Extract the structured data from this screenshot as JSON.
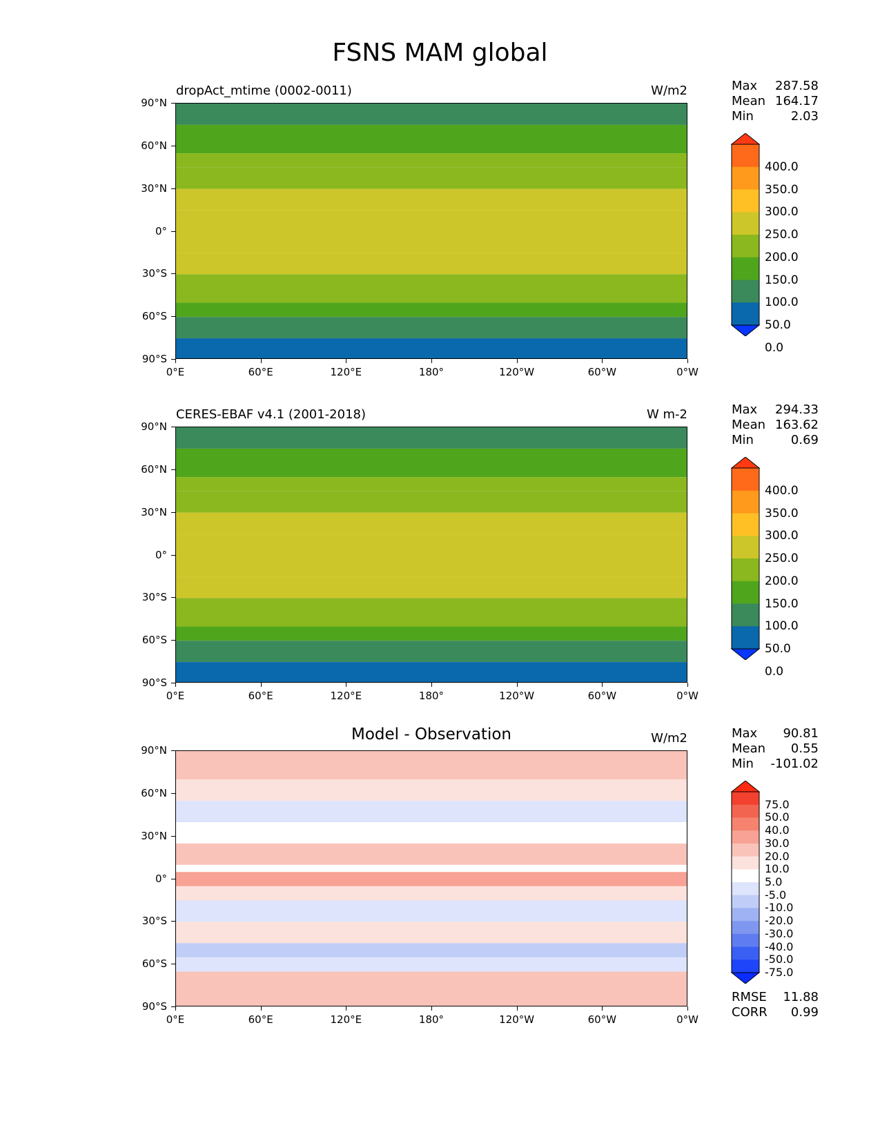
{
  "title": "FSNS MAM global",
  "x_ticks": [
    "0°E",
    "60°E",
    "120°E",
    "180°",
    "120°W",
    "60°W",
    "0°W"
  ],
  "y_ticks": [
    "90°N",
    "60°N",
    "30°N",
    "0°",
    "30°S",
    "60°S",
    "90°S"
  ],
  "panels": [
    {
      "title": "dropAct_mtime (0002-0011)",
      "units": "W/m2",
      "stats": {
        "max_label": "Max",
        "max": "287.58",
        "mean_label": "Mean",
        "mean": "164.17",
        "min_label": "Min",
        "min": "2.03"
      },
      "colorbar": {
        "labels": [
          "400.0",
          "350.0",
          "300.0",
          "250.0",
          "200.0",
          "150.0",
          "100.0",
          "50.0",
          "0.0"
        ],
        "colors": [
          "#ff3a12",
          "#ff6a1a",
          "#ff9a1c",
          "#ffc026",
          "#cdc62a",
          "#8ab81e",
          "#4fa61c",
          "#3b8a5c",
          "#0a68ac",
          "#0836ff"
        ]
      }
    },
    {
      "title": "CERES-EBAF v4.1 (2001-2018)",
      "units": "W m-2",
      "stats": {
        "max_label": "Max",
        "max": "294.33",
        "mean_label": "Mean",
        "mean": "163.62",
        "min_label": "Min",
        "min": "0.69"
      },
      "colorbar": {
        "labels": [
          "400.0",
          "350.0",
          "300.0",
          "250.0",
          "200.0",
          "150.0",
          "100.0",
          "50.0",
          "0.0"
        ],
        "colors": [
          "#ff3a12",
          "#ff6a1a",
          "#ff9a1c",
          "#ffc026",
          "#cdc62a",
          "#8ab81e",
          "#4fa61c",
          "#3b8a5c",
          "#0a68ac",
          "#0836ff"
        ]
      }
    },
    {
      "title": "Model - Observation",
      "units": "W/m2",
      "stats": {
        "max_label": "Max",
        "max": "90.81",
        "mean_label": "Mean",
        "mean": "0.55",
        "min_label": "Min",
        "min": "-101.02"
      },
      "colorbar": {
        "labels": [
          "75.0",
          "50.0",
          "40.0",
          "30.0",
          "20.0",
          "10.0",
          "5.0",
          "-5.0",
          "-10.0",
          "-20.0",
          "-30.0",
          "-40.0",
          "-50.0",
          "-75.0"
        ],
        "colors": [
          "#ff2a10",
          "#f2412e",
          "#f26450",
          "#f5836f",
          "#f7a294",
          "#f9c3b9",
          "#fce2dc",
          "#ffffff",
          "#dde4fb",
          "#c0cdf7",
          "#9fb2f3",
          "#8097ef",
          "#5f7df0",
          "#3a5ff3",
          "#1e45fa",
          "#0a2cff"
        ]
      },
      "metrics": {
        "rmse_label": "RMSE",
        "rmse": "11.88",
        "corr_label": "CORR",
        "corr": "0.99"
      }
    }
  ],
  "chart_data": {
    "type": "heatmap",
    "title": "FSNS MAM global",
    "x_range": [
      0,
      360
    ],
    "y_range": [
      -90,
      90
    ],
    "panels": [
      {
        "title": "dropAct_mtime (0002-0011)",
        "units": "W/m2",
        "zonal_bands_lat_value": [
          [
            90,
            75
          ],
          [
            75,
            125
          ],
          [
            55,
            150
          ],
          [
            45,
            175
          ],
          [
            30,
            225
          ],
          [
            15,
            240
          ],
          [
            0,
            240
          ],
          [
            -15,
            215
          ],
          [
            -30,
            190
          ],
          [
            -40,
            155
          ],
          [
            -50,
            110
          ],
          [
            -60,
            75
          ],
          [
            -75,
            40
          ],
          [
            -90,
            20
          ]
        ]
      },
      {
        "title": "CERES-EBAF v4.1 (2001-2018)",
        "units": "W m-2",
        "zonal_bands_lat_value": [
          [
            90,
            75
          ],
          [
            75,
            125
          ],
          [
            55,
            150
          ],
          [
            45,
            175
          ],
          [
            30,
            225
          ],
          [
            15,
            245
          ],
          [
            0,
            240
          ],
          [
            -15,
            215
          ],
          [
            -30,
            190
          ],
          [
            -40,
            155
          ],
          [
            -50,
            110
          ],
          [
            -60,
            75
          ],
          [
            -75,
            40
          ],
          [
            -90,
            20
          ]
        ]
      },
      {
        "title": "Model - Observation",
        "units": "W/m2",
        "zonal_bands_lat_value": [
          [
            90,
            10
          ],
          [
            70,
            5
          ],
          [
            55,
            -10
          ],
          [
            40,
            -5
          ],
          [
            25,
            10
          ],
          [
            10,
            -5
          ],
          [
            5,
            20
          ],
          [
            -5,
            5
          ],
          [
            -15,
            -10
          ],
          [
            -30,
            5
          ],
          [
            -45,
            -20
          ],
          [
            -55,
            -10
          ],
          [
            -65,
            10
          ],
          [
            -90,
            0
          ]
        ]
      }
    ]
  }
}
